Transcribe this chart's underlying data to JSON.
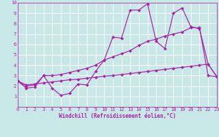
{
  "title": "",
  "xlabel": "Windchill (Refroidissement éolien,°C)",
  "ylabel": "",
  "xlim": [
    0,
    23
  ],
  "ylim": [
    0,
    10
  ],
  "xticks": [
    0,
    1,
    2,
    3,
    4,
    5,
    6,
    7,
    8,
    9,
    10,
    11,
    12,
    13,
    14,
    15,
    16,
    17,
    18,
    19,
    20,
    21,
    22,
    23
  ],
  "yticks": [
    1,
    2,
    3,
    4,
    5,
    6,
    7,
    8,
    9,
    10
  ],
  "bg_color": "#c8e8e8",
  "grid_color": "#ffffff",
  "line_color": "#aa22aa",
  "curve1_x": [
    0,
    1,
    2,
    3,
    4,
    5,
    6,
    7,
    8,
    9,
    10,
    11,
    12,
    13,
    14,
    15,
    16,
    17,
    18,
    19,
    20,
    21,
    22,
    23
  ],
  "curve1_y": [
    2.5,
    1.8,
    1.9,
    3.0,
    1.8,
    1.1,
    1.3,
    2.2,
    2.1,
    3.4,
    4.5,
    6.7,
    6.6,
    9.3,
    9.3,
    9.9,
    6.3,
    5.6,
    9.0,
    9.5,
    7.7,
    7.5,
    4.1,
    2.9
  ],
  "curve2_x": [
    0,
    1,
    2,
    3,
    4,
    5,
    6,
    7,
    8,
    9,
    10,
    11,
    12,
    13,
    14,
    15,
    16,
    17,
    18,
    19,
    20,
    21,
    22,
    23
  ],
  "curve2_y": [
    2.5,
    2.0,
    2.1,
    3.0,
    3.0,
    3.1,
    3.3,
    3.5,
    3.7,
    4.0,
    4.5,
    4.8,
    5.1,
    5.4,
    5.9,
    6.3,
    6.5,
    6.8,
    7.0,
    7.2,
    7.6,
    7.6,
    3.0,
    2.9
  ],
  "curve3_x": [
    0,
    1,
    2,
    3,
    4,
    5,
    6,
    7,
    8,
    9,
    10,
    11,
    12,
    13,
    14,
    15,
    16,
    17,
    18,
    19,
    20,
    21,
    22,
    23
  ],
  "curve3_y": [
    2.5,
    2.1,
    2.2,
    2.3,
    2.4,
    2.5,
    2.6,
    2.65,
    2.75,
    2.85,
    2.95,
    3.0,
    3.1,
    3.2,
    3.3,
    3.4,
    3.5,
    3.6,
    3.7,
    3.8,
    3.9,
    4.0,
    4.1,
    2.9
  ],
  "marker": "D",
  "markersize": 2,
  "linewidth": 0.9,
  "tick_fontsize": 5,
  "xlabel_fontsize": 5.5
}
